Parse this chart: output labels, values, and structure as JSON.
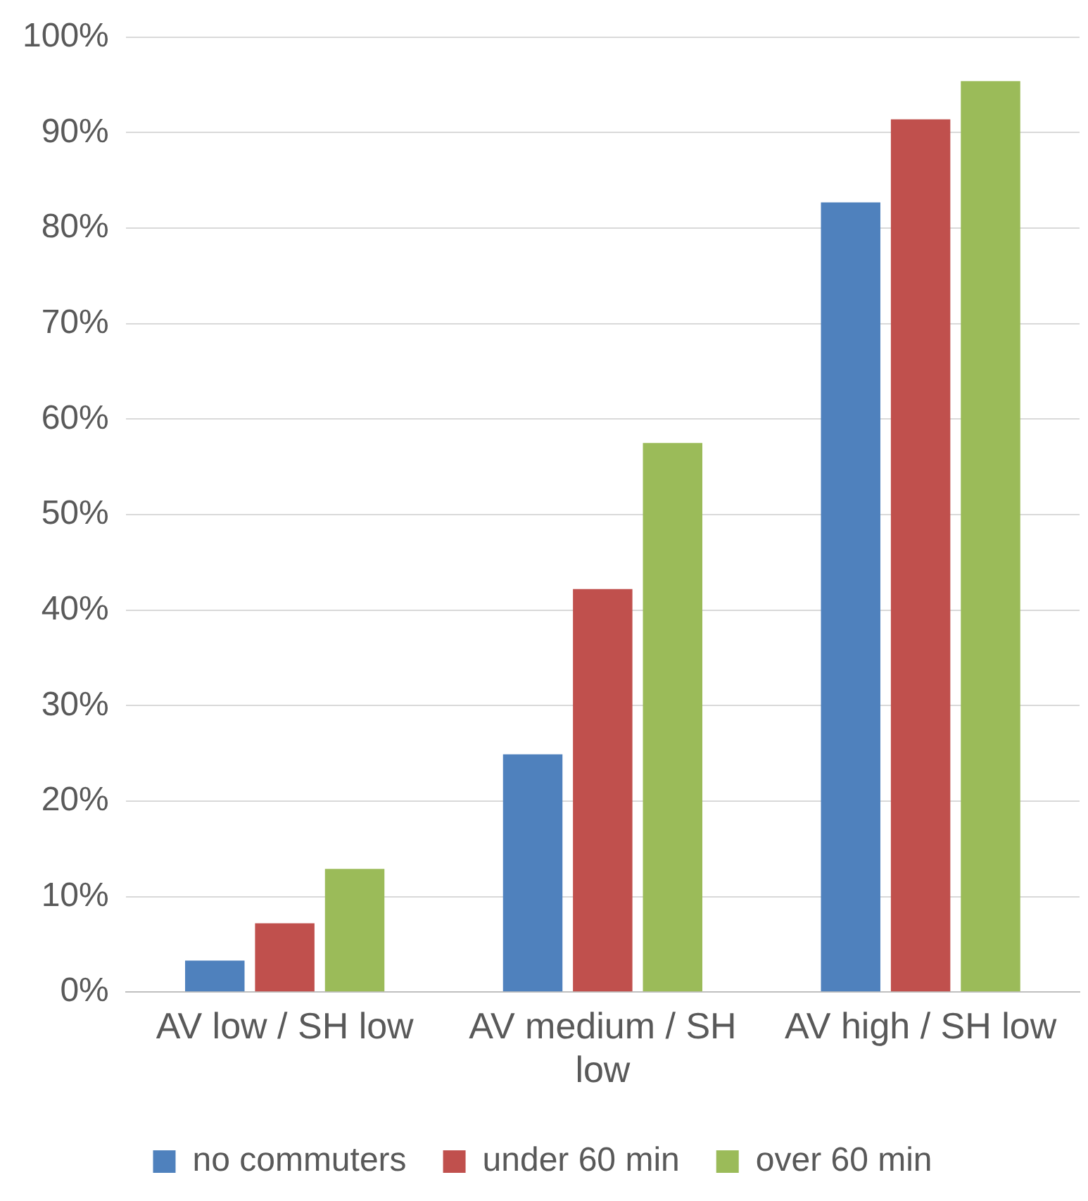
{
  "chart_data": {
    "type": "bar",
    "categories": [
      "AV low / SH low",
      "AV medium / SH low",
      "AV high / SH low"
    ],
    "series": [
      {
        "name": "no commuters",
        "color": "#4f81bd",
        "values": [
          3.3,
          24.9,
          82.7
        ]
      },
      {
        "name": "under 60 min",
        "color": "#c0504d",
        "values": [
          7.2,
          42.2,
          91.4
        ]
      },
      {
        "name": "over 60 min",
        "color": "#9bbb59",
        "values": [
          12.9,
          57.5,
          95.4
        ]
      }
    ],
    "ylim": [
      0,
      100
    ],
    "yticks": [
      {
        "value": 0,
        "label": "0%"
      },
      {
        "value": 10,
        "label": "10%"
      },
      {
        "value": 20,
        "label": "20%"
      },
      {
        "value": 30,
        "label": "30%"
      },
      {
        "value": 40,
        "label": "40%"
      },
      {
        "value": 50,
        "label": "50%"
      },
      {
        "value": 60,
        "label": "60%"
      },
      {
        "value": 70,
        "label": "70%"
      },
      {
        "value": 80,
        "label": "80%"
      },
      {
        "value": 90,
        "label": "90%"
      },
      {
        "value": 100,
        "label": "100%"
      }
    ],
    "grid": "y",
    "legend": "bottom"
  }
}
